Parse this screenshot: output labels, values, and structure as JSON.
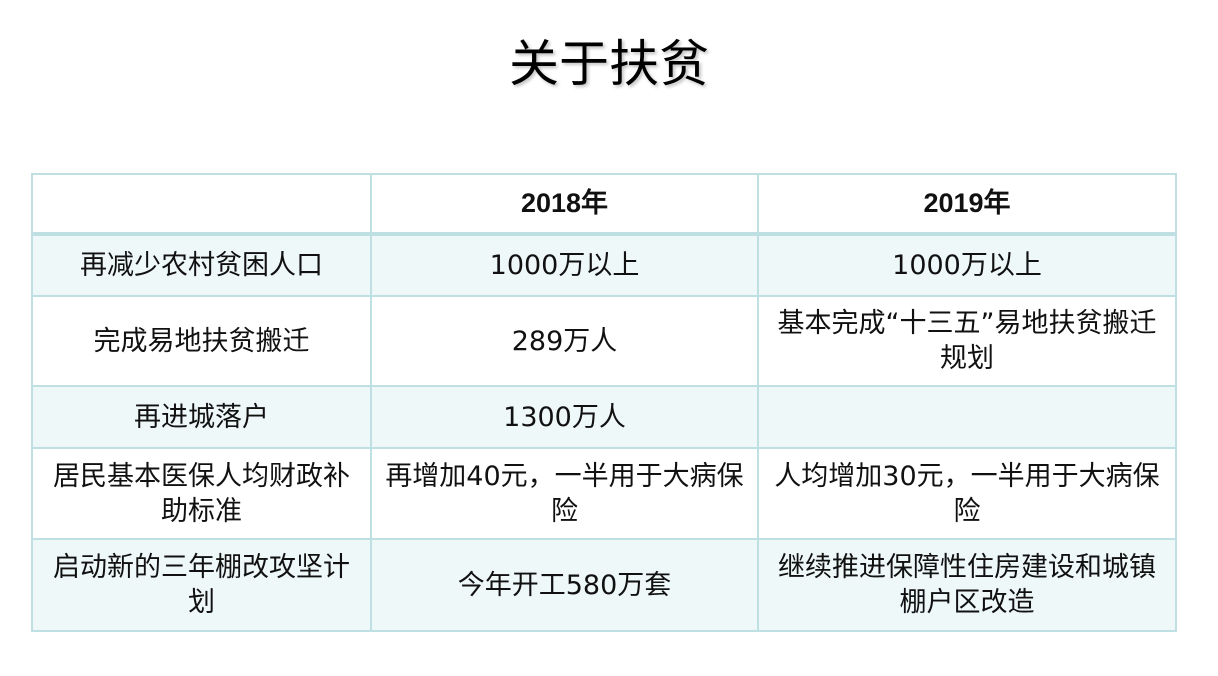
{
  "title": "关于扶贫",
  "table": {
    "headers": [
      "",
      "2018年",
      "2019年"
    ],
    "rows": [
      [
        "再减少农村贫困人口",
        "1000万以上",
        "1000万以上"
      ],
      [
        "完成易地扶贫搬迁",
        "289万人",
        "基本完成“十三五”易地扶贫搬迁规划"
      ],
      [
        "再进城落户",
        "1300万人",
        ""
      ],
      [
        "居民基本医保人均财政补助标准",
        "再增加40元，一半用于大病保险",
        "人均增加30元，一半用于大病保险"
      ],
      [
        "启动新的三年棚改攻坚计划",
        "今年开工580万套",
        "继续推进保障性住房建设和城镇棚户区改造"
      ]
    ]
  },
  "colors": {
    "border": "#bfe0e2",
    "row_tint": "#eff8f9"
  }
}
